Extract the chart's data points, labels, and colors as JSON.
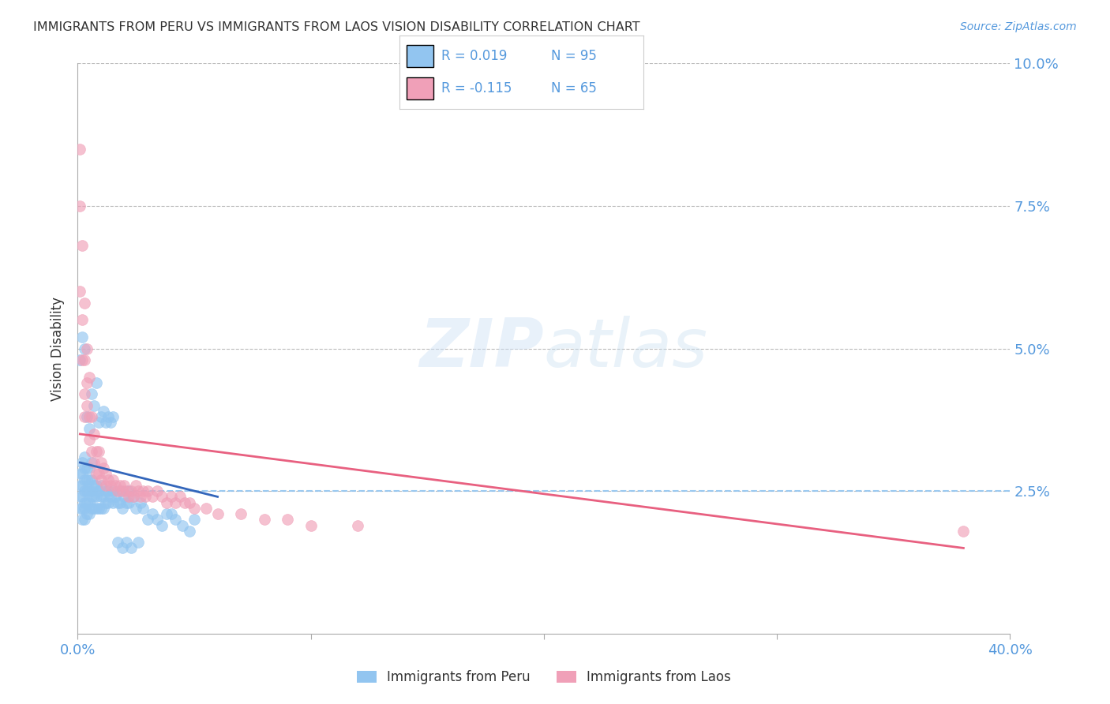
{
  "title": "IMMIGRANTS FROM PERU VS IMMIGRANTS FROM LAOS VISION DISABILITY CORRELATION CHART",
  "source": "Source: ZipAtlas.com",
  "ylabel": "Vision Disability",
  "xlim": [
    0.0,
    0.4
  ],
  "ylim": [
    0.0,
    0.1
  ],
  "yticks": [
    0.0,
    0.025,
    0.05,
    0.075,
    0.1
  ],
  "ytick_labels": [
    "",
    "2.5%",
    "5.0%",
    "7.5%",
    "10.0%"
  ],
  "xticks": [
    0.0,
    0.1,
    0.2,
    0.3,
    0.4
  ],
  "xtick_labels": [
    "0.0%",
    "",
    "",
    "",
    "40.0%"
  ],
  "legend_peru_R": "R = 0.019",
  "legend_peru_N": "N = 95",
  "legend_laos_R": "R = -0.115",
  "legend_laos_N": "N = 65",
  "peru_color": "#92c5f0",
  "laos_color": "#f0a0b8",
  "peru_line_color": "#3366bb",
  "laos_line_color": "#e86080",
  "background_color": "#ffffff",
  "grid_color": "#bbbbbb",
  "axis_color": "#aaaaaa",
  "title_color": "#333333",
  "label_color": "#5599dd",
  "peru_scatter_x": [
    0.001,
    0.001,
    0.001,
    0.001,
    0.002,
    0.002,
    0.002,
    0.002,
    0.002,
    0.002,
    0.003,
    0.003,
    0.003,
    0.003,
    0.003,
    0.003,
    0.003,
    0.004,
    0.004,
    0.004,
    0.004,
    0.004,
    0.005,
    0.005,
    0.005,
    0.005,
    0.005,
    0.006,
    0.006,
    0.006,
    0.006,
    0.006,
    0.007,
    0.007,
    0.007,
    0.008,
    0.008,
    0.008,
    0.009,
    0.009,
    0.01,
    0.01,
    0.01,
    0.011,
    0.011,
    0.012,
    0.012,
    0.013,
    0.013,
    0.014,
    0.015,
    0.015,
    0.016,
    0.017,
    0.018,
    0.018,
    0.019,
    0.02,
    0.021,
    0.022,
    0.022,
    0.024,
    0.025,
    0.027,
    0.028,
    0.03,
    0.032,
    0.034,
    0.036,
    0.038,
    0.04,
    0.042,
    0.045,
    0.048,
    0.05,
    0.001,
    0.002,
    0.003,
    0.004,
    0.005,
    0.006,
    0.007,
    0.008,
    0.009,
    0.01,
    0.011,
    0.012,
    0.013,
    0.014,
    0.015,
    0.017,
    0.019,
    0.021,
    0.023,
    0.026
  ],
  "peru_scatter_y": [
    0.022,
    0.024,
    0.026,
    0.028,
    0.02,
    0.022,
    0.024,
    0.026,
    0.028,
    0.03,
    0.02,
    0.022,
    0.023,
    0.025,
    0.027,
    0.029,
    0.031,
    0.021,
    0.023,
    0.025,
    0.027,
    0.029,
    0.021,
    0.023,
    0.025,
    0.027,
    0.029,
    0.022,
    0.024,
    0.025,
    0.027,
    0.03,
    0.022,
    0.024,
    0.026,
    0.022,
    0.024,
    0.026,
    0.022,
    0.025,
    0.022,
    0.024,
    0.026,
    0.022,
    0.024,
    0.023,
    0.025,
    0.023,
    0.025,
    0.024,
    0.023,
    0.025,
    0.024,
    0.023,
    0.025,
    0.023,
    0.022,
    0.024,
    0.023,
    0.025,
    0.023,
    0.024,
    0.022,
    0.023,
    0.022,
    0.02,
    0.021,
    0.02,
    0.019,
    0.021,
    0.021,
    0.02,
    0.019,
    0.018,
    0.02,
    0.048,
    0.052,
    0.05,
    0.038,
    0.036,
    0.042,
    0.04,
    0.044,
    0.037,
    0.038,
    0.039,
    0.037,
    0.038,
    0.037,
    0.038,
    0.016,
    0.015,
    0.016,
    0.015,
    0.016
  ],
  "laos_scatter_x": [
    0.001,
    0.001,
    0.001,
    0.002,
    0.002,
    0.002,
    0.003,
    0.003,
    0.003,
    0.003,
    0.004,
    0.004,
    0.004,
    0.005,
    0.005,
    0.005,
    0.006,
    0.006,
    0.007,
    0.007,
    0.008,
    0.008,
    0.009,
    0.009,
    0.01,
    0.01,
    0.011,
    0.012,
    0.012,
    0.013,
    0.014,
    0.015,
    0.016,
    0.017,
    0.018,
    0.019,
    0.02,
    0.021,
    0.022,
    0.023,
    0.024,
    0.025,
    0.026,
    0.027,
    0.028,
    0.029,
    0.03,
    0.032,
    0.034,
    0.036,
    0.038,
    0.04,
    0.042,
    0.044,
    0.046,
    0.048,
    0.05,
    0.055,
    0.06,
    0.07,
    0.08,
    0.09,
    0.1,
    0.12,
    0.38
  ],
  "laos_scatter_y": [
    0.085,
    0.075,
    0.06,
    0.068,
    0.055,
    0.048,
    0.058,
    0.048,
    0.042,
    0.038,
    0.05,
    0.044,
    0.04,
    0.045,
    0.038,
    0.034,
    0.038,
    0.032,
    0.035,
    0.03,
    0.032,
    0.028,
    0.032,
    0.028,
    0.03,
    0.027,
    0.029,
    0.028,
    0.026,
    0.027,
    0.026,
    0.027,
    0.026,
    0.025,
    0.026,
    0.025,
    0.026,
    0.025,
    0.024,
    0.025,
    0.024,
    0.026,
    0.025,
    0.024,
    0.025,
    0.024,
    0.025,
    0.024,
    0.025,
    0.024,
    0.023,
    0.024,
    0.023,
    0.024,
    0.023,
    0.023,
    0.022,
    0.022,
    0.021,
    0.021,
    0.02,
    0.02,
    0.019,
    0.019,
    0.018
  ],
  "peru_trend_x": [
    0.001,
    0.06
  ],
  "peru_trend_y": [
    0.03,
    0.024
  ],
  "laos_trend_x": [
    0.001,
    0.38
  ],
  "laos_trend_y": [
    0.035,
    0.015
  ],
  "dashed_line_y": 0.025,
  "dashed_line_x_start": 0.001,
  "dashed_line_x_end": 0.4
}
